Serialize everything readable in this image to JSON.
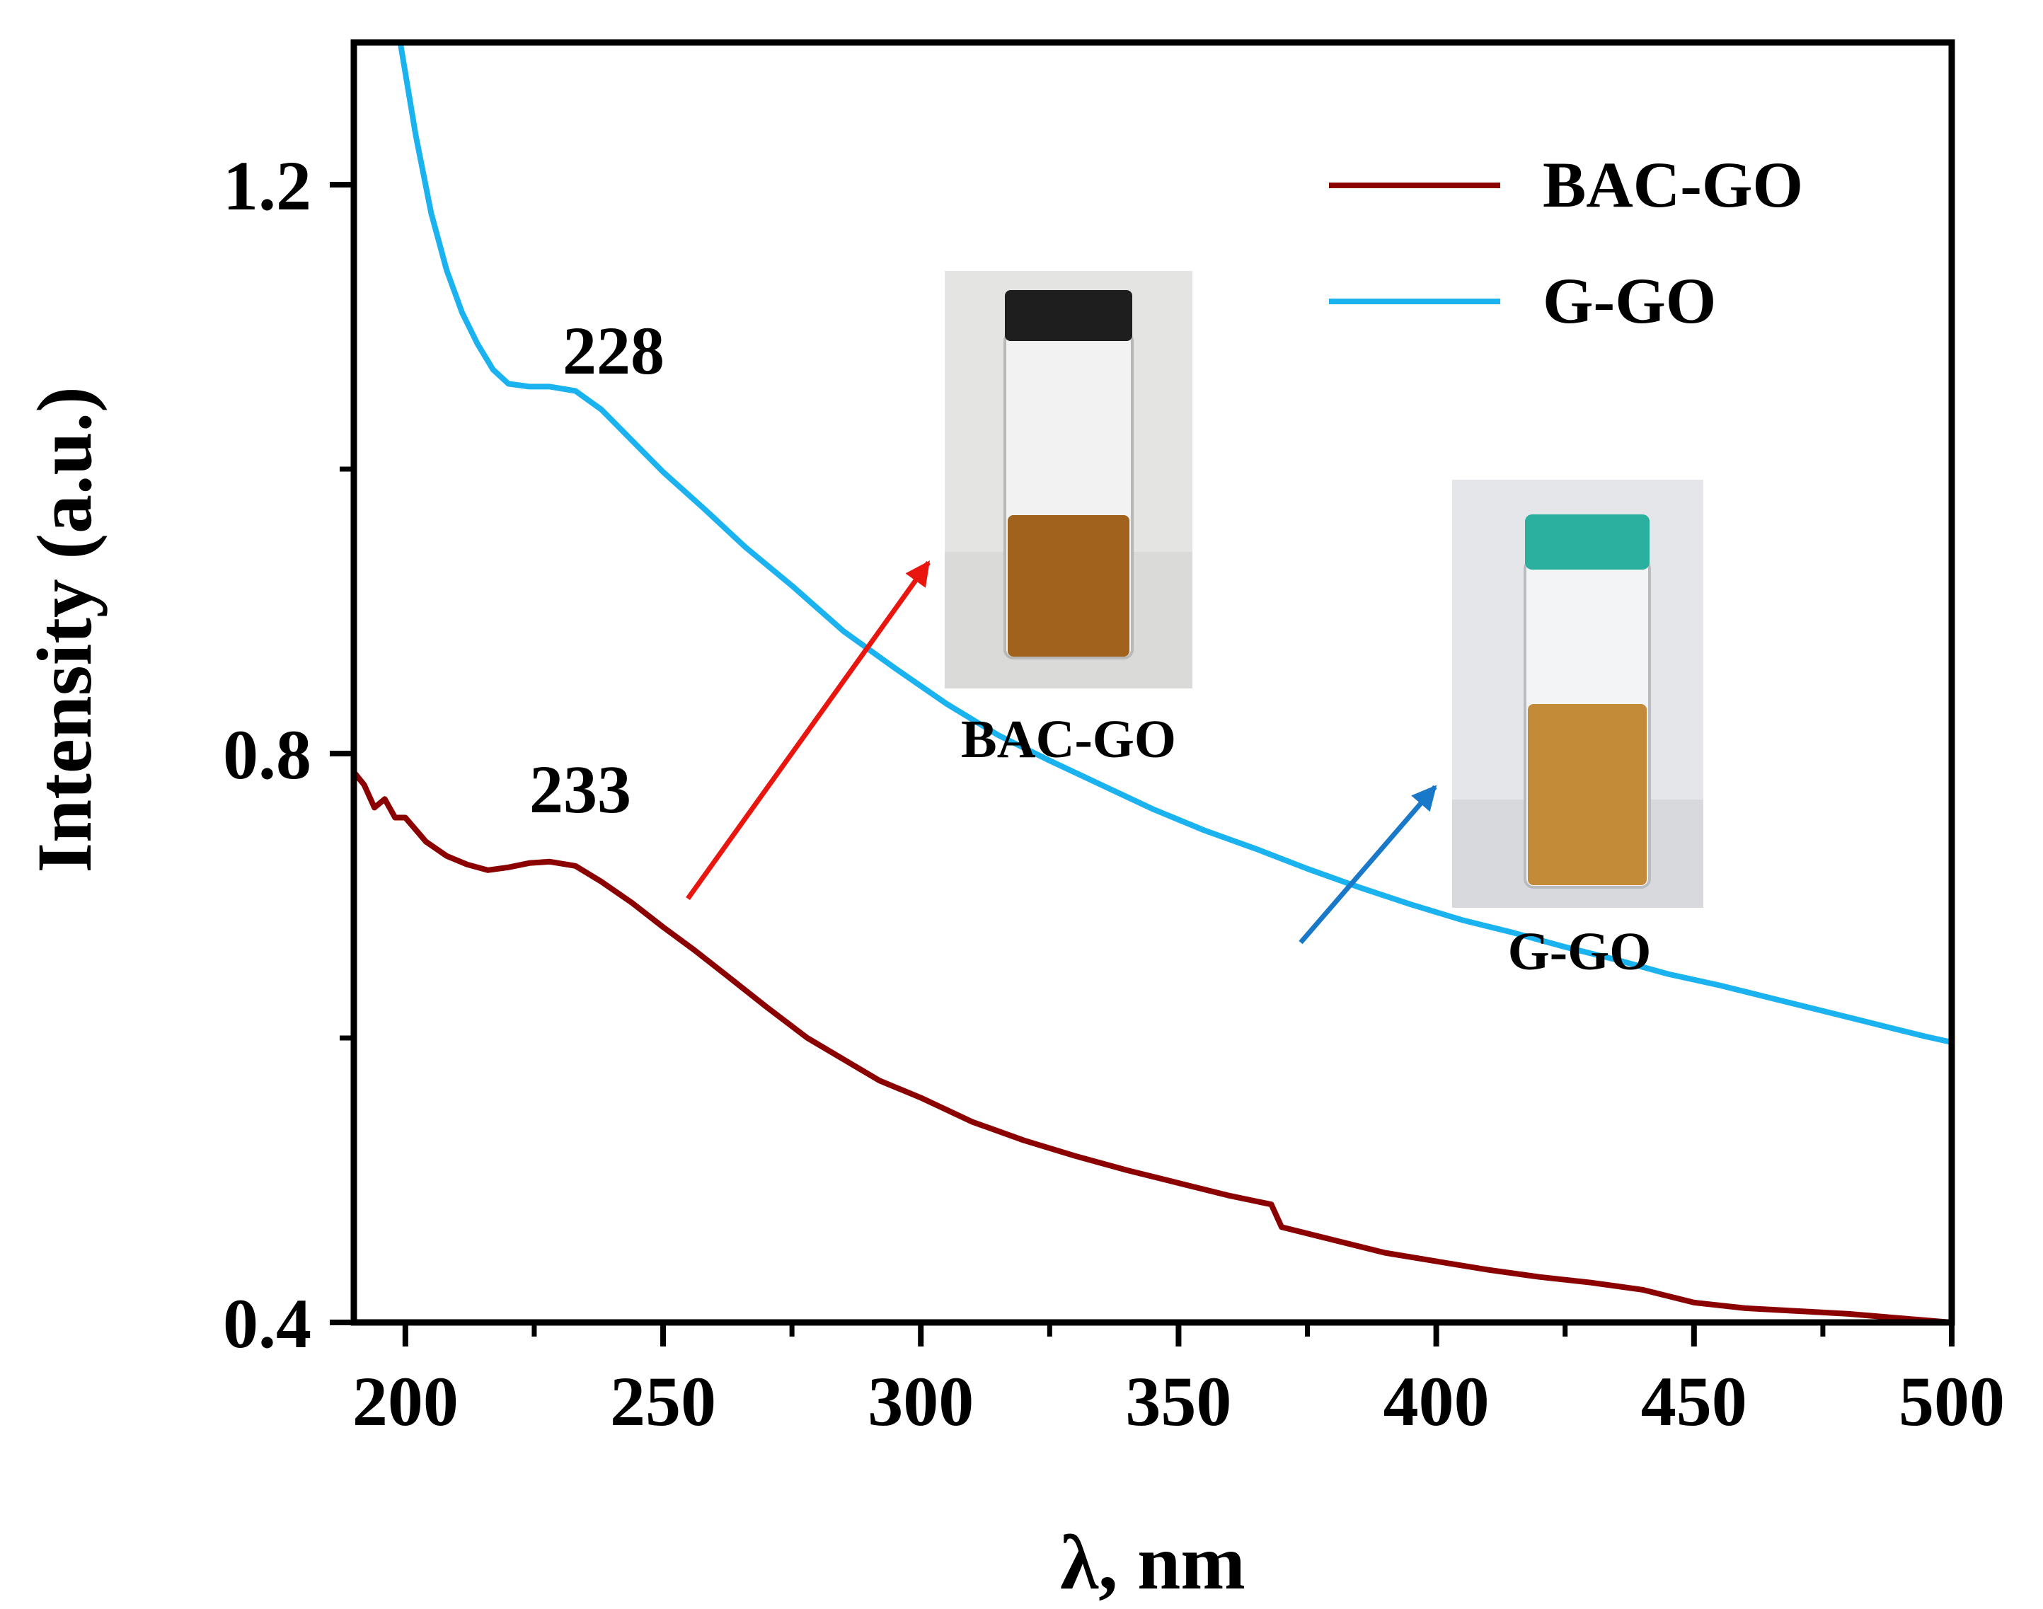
{
  "chart_data": {
    "type": "line",
    "title": "",
    "xlabel": "λ, nm",
    "ylabel": "Intensity (a.u.)",
    "xlim": [
      190,
      500
    ],
    "ylim": [
      0.4,
      1.3
    ],
    "x_ticks": [
      200,
      250,
      300,
      350,
      400,
      450,
      500
    ],
    "x_tick_labels": [
      "200",
      "250",
      "300",
      "350",
      "400",
      "450",
      "500"
    ],
    "y_ticks": [
      0.4,
      0.8,
      1.2
    ],
    "y_tick_labels": [
      "0.4",
      "0.8",
      "1.2"
    ],
    "grid": false,
    "legend_position": "top-right",
    "series": [
      {
        "name": "BAC-GO",
        "color": "#8b0000",
        "x": [
          190,
          192,
          194,
          196,
          198,
          200,
          204,
          208,
          212,
          216,
          220,
          224,
          228,
          233,
          238,
          244,
          250,
          256,
          262,
          270,
          278,
          285,
          292,
          300,
          310,
          320,
          330,
          340,
          350,
          360,
          368,
          370,
          380,
          390,
          400,
          410,
          420,
          430,
          440,
          450,
          460,
          470,
          480,
          490,
          500
        ],
        "y": [
          0.787,
          0.778,
          0.762,
          0.768,
          0.755,
          0.755,
          0.738,
          0.728,
          0.722,
          0.718,
          0.72,
          0.723,
          0.724,
          0.721,
          0.71,
          0.695,
          0.678,
          0.662,
          0.645,
          0.622,
          0.6,
          0.585,
          0.57,
          0.558,
          0.541,
          0.528,
          0.517,
          0.507,
          0.498,
          0.489,
          0.483,
          0.467,
          0.458,
          0.449,
          0.443,
          0.437,
          0.432,
          0.428,
          0.423,
          0.414,
          0.41,
          0.408,
          0.406,
          0.403,
          0.4
        ]
      },
      {
        "name": "G-GO",
        "color": "#1ab3f0",
        "x": [
          199,
          202,
          205,
          208,
          211,
          214,
          217,
          220,
          224,
          228,
          233,
          238,
          244,
          250,
          258,
          266,
          275,
          285,
          295,
          305,
          315,
          325,
          335,
          345,
          355,
          365,
          375,
          385,
          395,
          405,
          415,
          425,
          435,
          445,
          455,
          465,
          475,
          485,
          495,
          500
        ],
        "y": [
          1.3,
          1.235,
          1.18,
          1.14,
          1.11,
          1.088,
          1.07,
          1.06,
          1.058,
          1.058,
          1.055,
          1.042,
          1.02,
          0.998,
          0.972,
          0.945,
          0.918,
          0.886,
          0.86,
          0.835,
          0.813,
          0.795,
          0.778,
          0.761,
          0.746,
          0.733,
          0.719,
          0.706,
          0.694,
          0.683,
          0.674,
          0.664,
          0.655,
          0.645,
          0.637,
          0.628,
          0.619,
          0.61,
          0.601,
          0.597
        ]
      }
    ],
    "annotations": [
      {
        "text": "228",
        "series": "G-GO",
        "x": 228
      },
      {
        "text": "233",
        "series": "BAC-GO",
        "x": 233
      }
    ]
  },
  "insets": [
    {
      "name": "BAC-GO",
      "label": "BAC-GO",
      "cap_color": "#1e1e1e",
      "liquid_color": "#a0621c",
      "arrow_color": "#e8160f"
    },
    {
      "name": "G-GO",
      "label": "G-GO",
      "cap_color": "#2bb09f",
      "liquid_color": "#c38a38",
      "arrow_color": "#1a78c8"
    }
  ]
}
